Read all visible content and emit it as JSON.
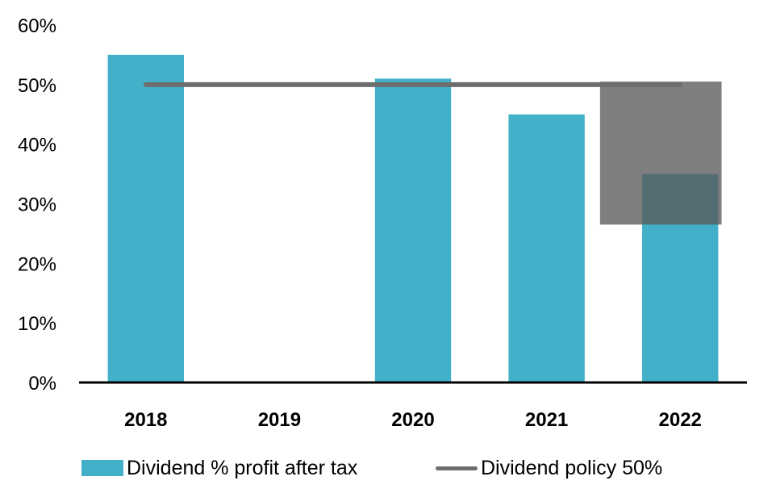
{
  "chart_data": {
    "type": "bar",
    "categories": [
      "2018",
      "2019",
      "2020",
      "2021",
      "2022"
    ],
    "series": [
      {
        "name": "Dividend % profit after tax",
        "type": "bar",
        "values": [
          55,
          null,
          51,
          45,
          35
        ]
      },
      {
        "name": "Dividend policy 50%",
        "type": "line",
        "values": [
          50,
          50,
          50,
          50,
          50
        ]
      }
    ],
    "shaded_range": {
      "category": "2022",
      "low": 26.5,
      "high": 50.5
    },
    "yticks": [
      "0%",
      "10%",
      "20%",
      "30%",
      "40%",
      "50%",
      "60%"
    ],
    "ylim": [
      0,
      60
    ],
    "grid": false,
    "legend_position": "bottom",
    "colors": {
      "bar": "#42B0C9",
      "line": "#6E6E6E",
      "shade": "#5A5A5A",
      "axis": "#000000"
    }
  },
  "legend": {
    "bar_label": "Dividend % profit after tax",
    "line_label": "Dividend policy 50%"
  }
}
